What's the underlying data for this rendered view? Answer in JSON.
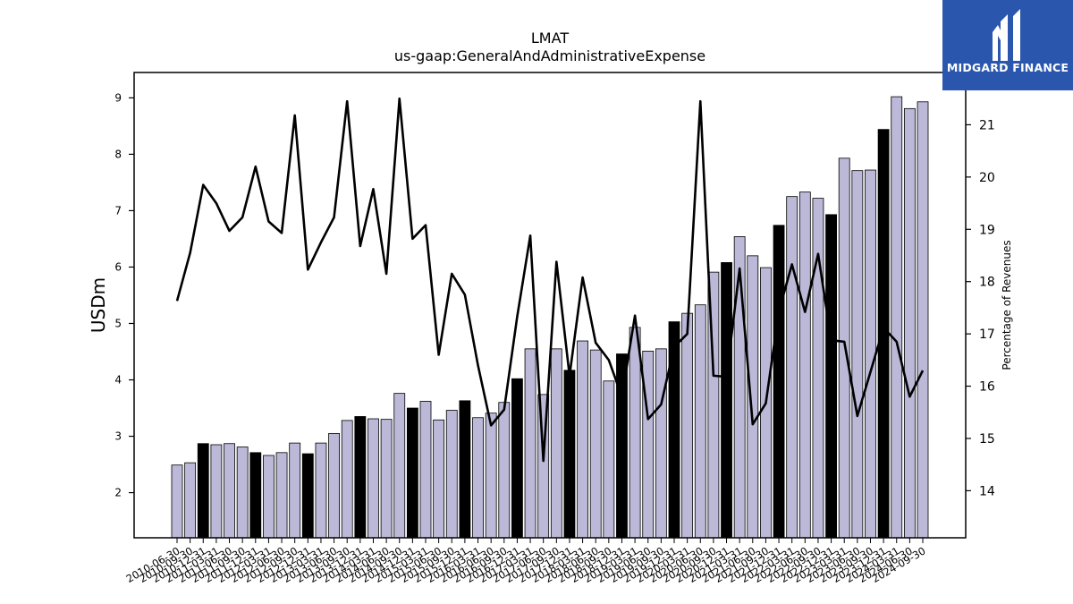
{
  "title": "LMAT",
  "subtitle": "us-gaap:GeneralAndAdministrativeExpense",
  "brand": {
    "name": "MIDGARD FINANCE",
    "color": "#2a57ad",
    "icon": "midgard-logo-icon"
  },
  "chart_data": {
    "type": "bar",
    "ylabel": "USDm",
    "y2label": "Percentage of Revenues",
    "ylim": [
      1.2,
      9.45
    ],
    "y2lim": [
      13.1,
      22.0
    ],
    "yticks": [
      2,
      3,
      4,
      5,
      6,
      7,
      8,
      9
    ],
    "y2ticks": [
      14,
      15,
      16,
      17,
      18,
      19,
      20,
      21
    ],
    "colors": {
      "bar": "#bbb8d8",
      "bar_q4": "#000000",
      "line": "#000000"
    },
    "categories": [
      "2010-06-30",
      "2010-09-30",
      "2010-12-31",
      "2011-03-31",
      "2011-06-30",
      "2011-09-30",
      "2011-12-31",
      "2012-03-31",
      "2012-06-30",
      "2012-09-30",
      "2012-12-31",
      "2013-03-31",
      "2013-06-30",
      "2013-09-30",
      "2013-12-31",
      "2014-03-31",
      "2014-06-30",
      "2014-09-30",
      "2014-12-31",
      "2015-03-31",
      "2015-06-30",
      "2015-09-30",
      "2015-12-31",
      "2016-03-31",
      "2016-06-30",
      "2016-09-30",
      "2016-12-31",
      "2017-03-31",
      "2017-06-30",
      "2017-09-30",
      "2017-12-31",
      "2018-03-31",
      "2018-06-30",
      "2018-09-30",
      "2018-12-31",
      "2019-03-31",
      "2019-06-30",
      "2019-09-30",
      "2019-12-31",
      "2020-03-31",
      "2020-06-30",
      "2020-09-30",
      "2020-12-31",
      "2021-03-31",
      "2021-06-30",
      "2021-09-30",
      "2021-12-31",
      "2022-03-31",
      "2022-06-30",
      "2022-09-30",
      "2022-12-31",
      "2023-03-31",
      "2023-06-30",
      "2023-09-30",
      "2023-12-31",
      "2024-03-31",
      "2024-06-30",
      "2024-09-30"
    ],
    "series": [
      {
        "type": "bar",
        "values": [
          2.49,
          2.53,
          2.87,
          2.85,
          2.87,
          2.81,
          2.71,
          2.66,
          2.71,
          2.88,
          2.69,
          2.88,
          3.05,
          3.28,
          3.35,
          3.31,
          3.3,
          3.76,
          3.5,
          3.62,
          3.29,
          3.46,
          3.63,
          3.33,
          3.41,
          3.6,
          4.02,
          4.55,
          3.74,
          4.55,
          4.17,
          4.69,
          4.53,
          3.98,
          4.46,
          4.93,
          4.51,
          4.55,
          5.03,
          5.18,
          5.33,
          5.91,
          6.08,
          6.54,
          6.2,
          5.99,
          6.74,
          7.25,
          7.33,
          7.22,
          6.93,
          7.93,
          7.71,
          7.72,
          8.44,
          9.02,
          8.81,
          8.93
        ]
      },
      {
        "type": "line",
        "axis": "right",
        "values": [
          17.63,
          18.55,
          19.85,
          19.5,
          18.97,
          19.23,
          20.2,
          19.15,
          18.93,
          21.18,
          18.23,
          18.75,
          19.23,
          21.45,
          18.68,
          19.77,
          18.15,
          21.5,
          18.82,
          19.08,
          16.6,
          18.15,
          17.75,
          16.4,
          15.25,
          15.55,
          17.33,
          18.88,
          14.57,
          18.38,
          16.2,
          18.08,
          16.83,
          16.5,
          15.8,
          17.35,
          15.37,
          15.65,
          16.75,
          17.0,
          21.45,
          16.2,
          16.18,
          18.25,
          15.27,
          15.67,
          17.43,
          18.33,
          17.42,
          18.53,
          16.88,
          16.85,
          15.43,
          16.27,
          17.12,
          16.85,
          15.8,
          16.3
        ]
      }
    ]
  }
}
